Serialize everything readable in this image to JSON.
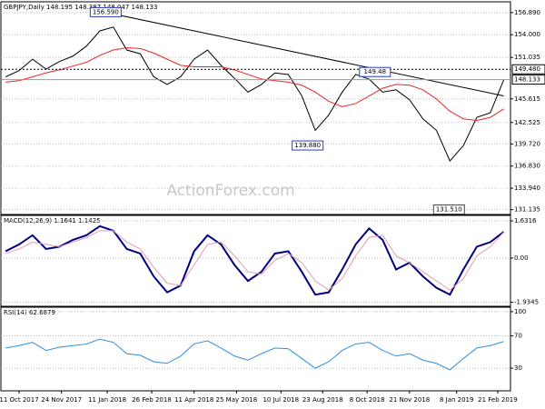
{
  "chart_data": [
    {
      "type": "line",
      "title": "GBPJPY,Daily  148.195 148.387 148.047 148.133",
      "x": [
        -2,
        0,
        2,
        4,
        6,
        8,
        10,
        12,
        14,
        16,
        18,
        20,
        22,
        24,
        26,
        28,
        30,
        32,
        34,
        36,
        38,
        40,
        42,
        44,
        46,
        48,
        50,
        52,
        54,
        56,
        58,
        60,
        62,
        64,
        66,
        68,
        70,
        72
      ],
      "xlim": [
        -2.7,
        73
      ],
      "series": [
        {
          "color": "#000000",
          "values": [
            148.5,
            149.3,
            150.8,
            149.5,
            150.5,
            151.2,
            152.5,
            154.5,
            155.0,
            152.0,
            151.5,
            148.5,
            147.5,
            148.5,
            150.8,
            152.0,
            150.0,
            148.3,
            146.5,
            147.5,
            149.0,
            148.8,
            146.0,
            141.5,
            143.5,
            146.5,
            148.8,
            148.2,
            146.5,
            146.8,
            145.5,
            143.0,
            141.5,
            137.5,
            139.5,
            143.2,
            143.8,
            148.1
          ]
        },
        {
          "color": "#e8262a",
          "values": [
            147.8,
            148.0,
            148.5,
            149.0,
            149.4,
            149.9,
            150.4,
            151.3,
            152.0,
            152.3,
            152.2,
            151.6,
            150.8,
            150.0,
            149.8,
            149.8,
            149.8,
            149.4,
            148.8,
            148.2,
            148.0,
            147.8,
            147.4,
            146.5,
            145.3,
            144.6,
            145.0,
            146.0,
            147.0,
            147.5,
            147.4,
            146.8,
            145.6,
            144.0,
            143.0,
            142.8,
            143.2,
            144.3
          ]
        }
      ],
      "trendline": {
        "x": [
          13,
          72
        ],
        "values": [
          156.9,
          146.0
        ]
      },
      "ylim": [
        130.5,
        158.3
      ],
      "yticks": [
        {
          "value": 156.89,
          "label": "156.890"
        },
        {
          "value": 154.0,
          "label": "154.000"
        },
        {
          "value": 151.035,
          "label": "151.035"
        },
        {
          "value": 145.615,
          "label": "145.615"
        },
        {
          "value": 142.525,
          "label": "142.525"
        },
        {
          "value": 139.72,
          "label": "139.720"
        },
        {
          "value": 136.83,
          "label": "136.830"
        },
        {
          "value": 133.94,
          "label": "133.940"
        },
        {
          "value": 131.135,
          "label": "131.135"
        }
      ],
      "price_levels": [
        {
          "value": 149.48,
          "label": "149.480"
        },
        {
          "value": 148.133,
          "label": "148.133"
        }
      ],
      "annotations": [
        {
          "text": "156.590",
          "x": 13,
          "value": 156.59
        },
        {
          "text": "139.880",
          "x": 43,
          "value": 139.88
        },
        {
          "text": "149.48",
          "x": 53,
          "value": 149.48
        },
        {
          "text": "131.510",
          "x": 64,
          "value": 131.51
        }
      ],
      "watermark": "ActionForex.com"
    },
    {
      "type": "line",
      "title": "MACD(12,26,9) 1.1641 1.1425",
      "x": [
        -2,
        0,
        2,
        4,
        6,
        8,
        10,
        12,
        14,
        16,
        18,
        20,
        22,
        24,
        26,
        28,
        30,
        32,
        34,
        36,
        38,
        40,
        42,
        44,
        46,
        48,
        50,
        52,
        54,
        56,
        58,
        60,
        62,
        64,
        66,
        68,
        70,
        72
      ],
      "xlim": [
        -2.7,
        73
      ],
      "series": [
        {
          "color": "#000080",
          "values": [
            0.3,
            0.6,
            1.0,
            0.4,
            0.5,
            0.8,
            1.0,
            1.4,
            1.2,
            0.4,
            0.2,
            -0.8,
            -1.5,
            -1.2,
            0.3,
            1.0,
            0.6,
            -0.3,
            -1.0,
            -0.6,
            0.2,
            0.3,
            -0.6,
            -1.6,
            -1.5,
            -0.5,
            0.6,
            1.3,
            0.8,
            -0.5,
            -0.2,
            -0.8,
            -1.3,
            -1.6,
            -0.5,
            0.5,
            0.7,
            1.15
          ]
        },
        {
          "color": "#e39bb0",
          "values": [
            0.2,
            0.4,
            0.7,
            0.6,
            0.5,
            0.7,
            0.9,
            1.2,
            1.2,
            0.7,
            0.4,
            -0.4,
            -1.1,
            -1.2,
            -0.3,
            0.6,
            0.7,
            0.1,
            -0.6,
            -0.7,
            -0.1,
            0.2,
            -0.2,
            -1.0,
            -1.4,
            -0.9,
            0.1,
            0.9,
            1.0,
            0.1,
            -0.2,
            -0.6,
            -1.0,
            -1.4,
            -0.9,
            0.1,
            0.5,
            1.14
          ]
        }
      ],
      "ylim": [
        -2.11,
        1.87
      ],
      "yticks": [
        {
          "value": 1.6316,
          "label": "1.6316"
        },
        {
          "value": 0,
          "label": "0.00"
        },
        {
          "value": -1.9345,
          "label": "-1.9345"
        }
      ]
    },
    {
      "type": "line",
      "title": "RSI(14) 62.6879",
      "x": [
        -2,
        0,
        2,
        4,
        6,
        8,
        10,
        12,
        14,
        16,
        18,
        20,
        22,
        24,
        26,
        28,
        30,
        32,
        34,
        36,
        38,
        40,
        42,
        44,
        46,
        48,
        50,
        52,
        54,
        56,
        58,
        60,
        62,
        64,
        66,
        68,
        70,
        72
      ],
      "xlim": [
        -2.7,
        73
      ],
      "series": [
        {
          "color": "#2e8fe0",
          "values": [
            55,
            58,
            62,
            52,
            56,
            58,
            60,
            66,
            62,
            48,
            46,
            38,
            36,
            45,
            60,
            64,
            55,
            45,
            40,
            48,
            55,
            54,
            42,
            30,
            38,
            52,
            60,
            62,
            52,
            45,
            48,
            40,
            36,
            28,
            42,
            55,
            58,
            63
          ]
        }
      ],
      "ylim": [
        2,
        105.5
      ],
      "yticks": [
        100,
        70,
        30
      ],
      "xticks": [
        {
          "value": 0,
          "label": "11 Oct 2017"
        },
        {
          "value": 6.3,
          "label": "24 Nov 2017"
        },
        {
          "value": 13.1,
          "label": "11 Jan 2018"
        },
        {
          "value": 19.7,
          "label": "26 Feb 2018"
        },
        {
          "value": 26,
          "label": "11 Apr 2018"
        },
        {
          "value": 32.3,
          "label": "25 May 2018"
        },
        {
          "value": 38.9,
          "label": "10 Jul 2018"
        },
        {
          "value": 45.1,
          "label": "23 Aug 2018"
        },
        {
          "value": 51.7,
          "label": "8 Oct 2018"
        },
        {
          "value": 58,
          "label": "21 Nov 2018"
        },
        {
          "value": 65,
          "label": "8 Jan 2019"
        },
        {
          "value": 71.1,
          "label": "21 Feb 2019"
        }
      ]
    }
  ]
}
